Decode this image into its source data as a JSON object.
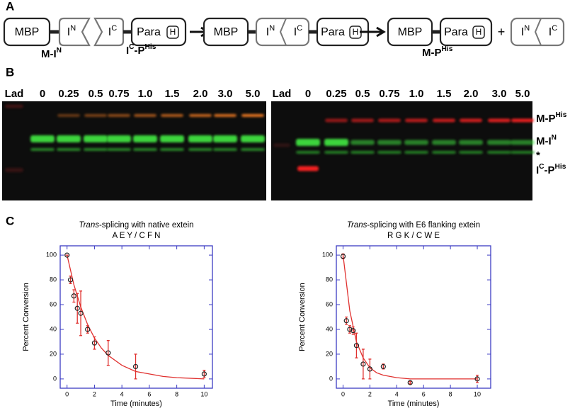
{
  "panel_labels": [
    "A",
    "B",
    "C"
  ],
  "diagram": {
    "mbp": "MBP",
    "i": "I",
    "n": "N",
    "c": "C",
    "para": "Para",
    "h": "H",
    "plus": "+",
    "label_m_in": [
      "M-I",
      "N"
    ],
    "label_ic_phis": [
      "I",
      "C",
      "-P",
      "His"
    ],
    "label_m_phis": [
      "M-P",
      "His"
    ]
  },
  "gel": {
    "lanes": [
      "Lad",
      "0",
      "0.25",
      "0.5",
      "0.75",
      "1.0",
      "1.5",
      "2.0",
      "3.0",
      "5.0"
    ],
    "bands": [
      [
        "M-P",
        "His"
      ],
      [
        "M-I",
        "N"
      ],
      [
        "*"
      ],
      [
        "I",
        "C",
        "-P",
        "His"
      ]
    ]
  },
  "chart_data": [
    {
      "type": "scatter",
      "title": [
        "Trans",
        "-splicing with native extein"
      ],
      "subtitle": "A E Y / C F N",
      "xlabel": "Time (minutes)",
      "ylabel": "Percent Conversion",
      "x": [
        0,
        0.25,
        0.5,
        0.75,
        1,
        1.5,
        2,
        3,
        5,
        10
      ],
      "values": [
        100,
        80,
        67,
        57,
        53,
        40,
        29,
        21,
        10,
        4
      ],
      "errors": [
        0,
        3,
        5,
        12,
        18,
        3,
        5,
        10,
        10,
        3
      ],
      "fit": {
        "x": [
          0,
          0.5,
          1,
          1.5,
          2,
          2.5,
          3,
          4,
          5,
          6,
          7,
          8,
          10
        ],
        "values": [
          100,
          76,
          58,
          44,
          33,
          25,
          19,
          11,
          6,
          4,
          2,
          1,
          0
        ]
      },
      "color": "#e0312f",
      "marker_color": "#222",
      "axis_color": "#3b3bc4",
      "xlim": [
        -0.5,
        10.6
      ],
      "ylim": [
        -7.5,
        107.5
      ],
      "xticks": [
        0,
        2,
        4,
        6,
        8,
        10
      ],
      "yticks": [
        0,
        20,
        40,
        60,
        80,
        100
      ]
    },
    {
      "type": "scatter",
      "title": [
        "Trans",
        "-splicing with E6 flanking extein"
      ],
      "subtitle": "R G K / C W E",
      "xlabel": "Time (minutes)",
      "ylabel": "Percent Conversion",
      "x": [
        0,
        0.25,
        0.5,
        0.75,
        1,
        1.5,
        2,
        3,
        5,
        10
      ],
      "values": [
        99,
        47,
        40,
        39,
        27,
        12,
        8,
        10,
        -3,
        0
      ],
      "errors": [
        2,
        3,
        3,
        3,
        10,
        12,
        8,
        2,
        1,
        3
      ],
      "fit": {
        "x": [
          0,
          0.5,
          1,
          1.5,
          2,
          2.5,
          3,
          4,
          5,
          6,
          7,
          8,
          10
        ],
        "values": [
          100,
          55,
          30,
          17,
          9,
          5,
          3,
          1,
          0,
          0,
          0,
          0,
          0
        ]
      },
      "color": "#e0312f",
      "marker_color": "#222",
      "axis_color": "#3b3bc4",
      "xlim": [
        -0.5,
        11.0
      ],
      "ylim": [
        -7.5,
        107.5
      ],
      "xticks": [
        0,
        2,
        4,
        6,
        8,
        10
      ],
      "yticks": [
        0,
        20,
        40,
        60,
        80,
        100
      ]
    }
  ]
}
